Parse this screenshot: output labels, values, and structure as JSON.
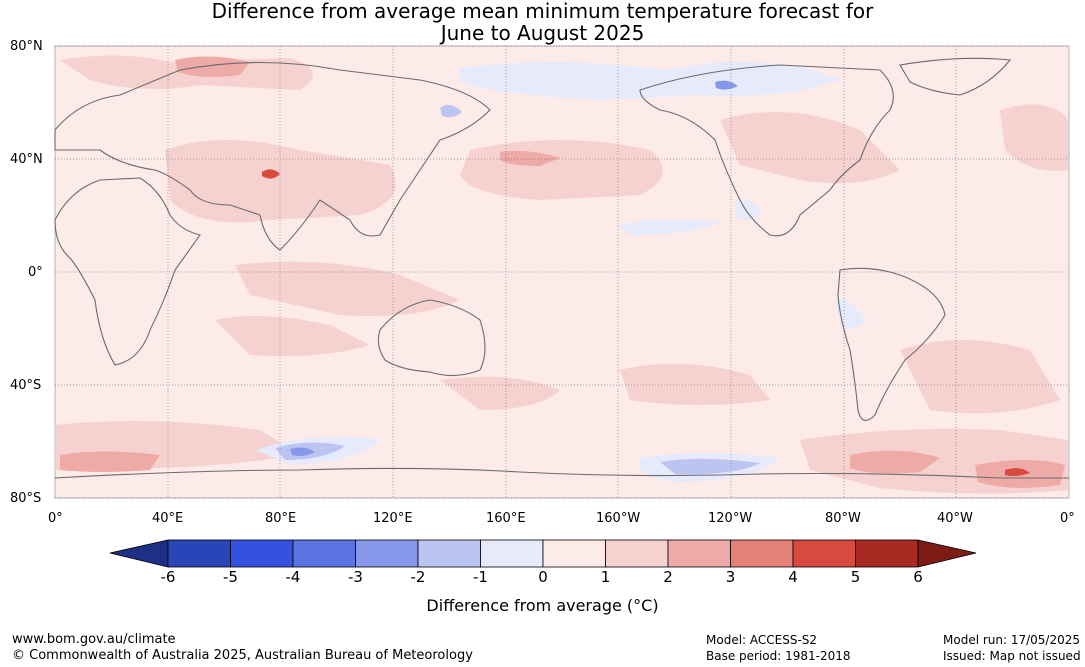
{
  "title_line1": "Difference from average mean minimum temperature forecast for",
  "title_line2": "June to August 2025",
  "lat_labels": [
    "80°N",
    "40°N",
    "0°",
    "40°S",
    "80°S"
  ],
  "lon_labels": [
    "0°",
    "40°E",
    "80°E",
    "120°E",
    "160°E",
    "160°W",
    "120°W",
    "80°W",
    "40°W",
    "0°"
  ],
  "colorbar": {
    "ticks": [
      "-6",
      "-5",
      "-4",
      "-3",
      "-2",
      "-1",
      "0",
      "1",
      "2",
      "3",
      "4",
      "5",
      "6"
    ],
    "colors": [
      "#1e2f86",
      "#2a45b8",
      "#3352e0",
      "#5b74e4",
      "#8797e9",
      "#bcc5f2",
      "#e6eafb",
      "#fcebe8",
      "#f5d2d0",
      "#eeaaa6",
      "#e68178",
      "#d84a3e",
      "#a82a22",
      "#7c1c15"
    ],
    "label": "Difference from average (°C)"
  },
  "footer": {
    "website": "www.bom.gov.au/climate",
    "copyright": "© Commonwealth of Australia 2025, Australian Bureau of Meteorology",
    "model": "Model: ACCESS-S2",
    "base_period": "Base period: 1981-2018",
    "model_run": "Model run: 17/05/2025",
    "issued": "Issued: Map not issued"
  }
}
